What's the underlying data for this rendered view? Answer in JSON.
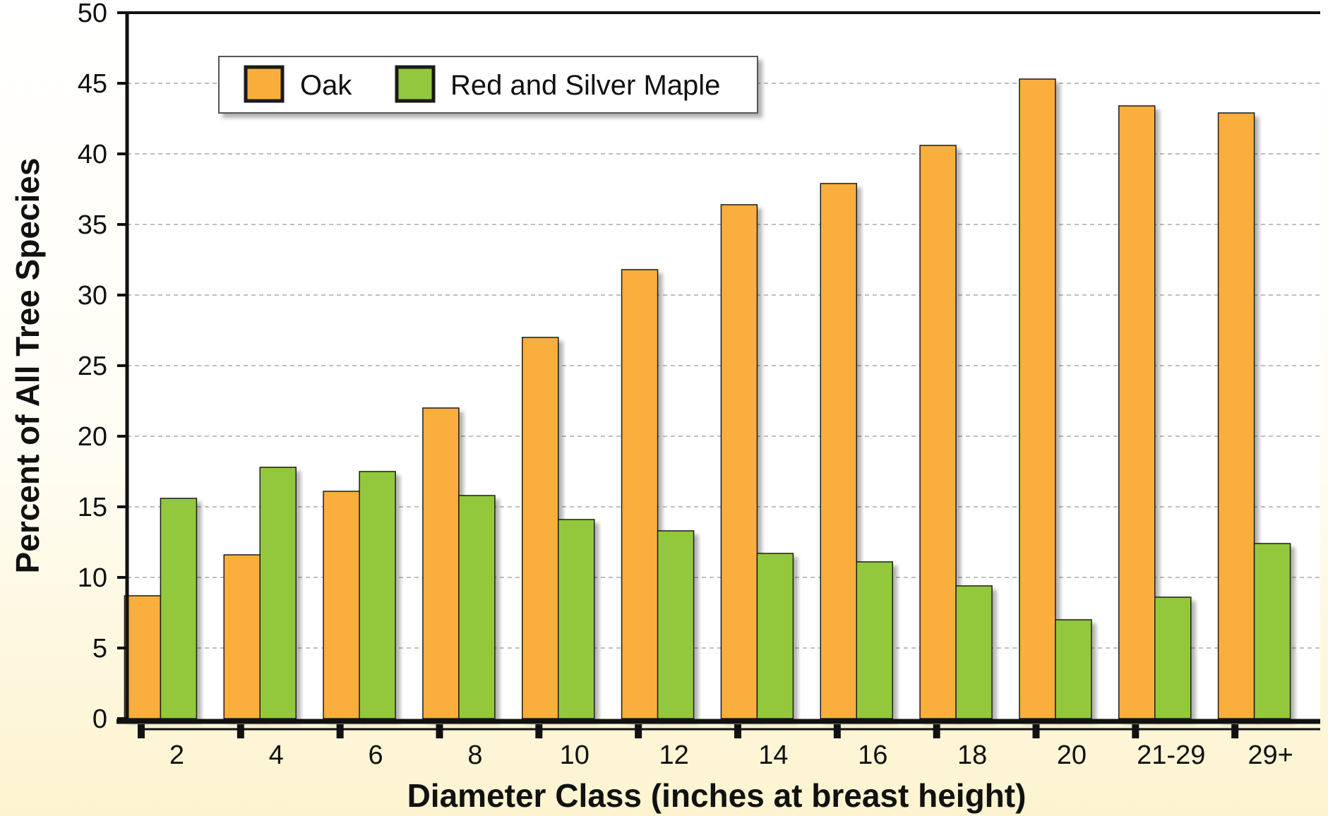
{
  "chart_data": {
    "type": "bar",
    "title": "",
    "xlabel": "Diameter Class (inches at breast height)",
    "ylabel": "Percent of All Tree Species",
    "categories": [
      "2",
      "4",
      "6",
      "8",
      "10",
      "12",
      "14",
      "16",
      "18",
      "20",
      "21-29",
      "29+"
    ],
    "series": [
      {
        "name": "Oak",
        "color": "#f9ae3c",
        "values": [
          8.7,
          11.6,
          16.1,
          22.0,
          27.0,
          31.8,
          36.4,
          37.9,
          40.6,
          45.3,
          43.4,
          42.9
        ]
      },
      {
        "name": "Red and Silver Maple",
        "color": "#93c83e",
        "values": [
          15.6,
          17.8,
          17.5,
          15.8,
          14.1,
          13.3,
          11.7,
          11.1,
          9.4,
          7.0,
          8.6,
          12.4
        ]
      }
    ],
    "ylim": [
      0,
      50
    ],
    "yticks": [
      0,
      5,
      10,
      15,
      20,
      25,
      30,
      35,
      40,
      45,
      50
    ],
    "grid": true,
    "legend_position": "top-left"
  }
}
